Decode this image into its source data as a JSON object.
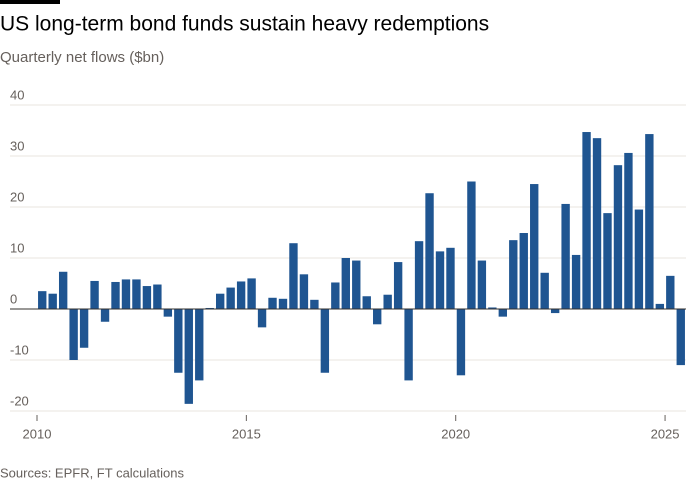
{
  "chart_data": {
    "type": "bar",
    "title": "US long-term bond funds sustain heavy redemptions",
    "subtitle": "Quarterly net flows ($bn)",
    "source": "Sources: EPFR, FT calculations",
    "color": "#1f5591",
    "x": [
      2010,
      2010.25,
      2010.5,
      2010.75,
      2011,
      2011.25,
      2011.5,
      2011.75,
      2012,
      2012.25,
      2012.5,
      2012.75,
      2013,
      2013.25,
      2013.5,
      2013.75,
      2014,
      2014.25,
      2014.5,
      2014.75,
      2015,
      2015.25,
      2015.5,
      2015.75,
      2016,
      2016.25,
      2016.5,
      2016.75,
      2017,
      2017.25,
      2017.5,
      2017.75,
      2018,
      2018.25,
      2018.5,
      2018.75,
      2019,
      2019.25,
      2019.5,
      2019.75,
      2020,
      2020.25,
      2020.5,
      2020.75,
      2021,
      2021.25,
      2021.5,
      2021.75,
      2022,
      2022.25,
      2022.5,
      2022.75,
      2023,
      2023.25,
      2023.5,
      2023.75,
      2024,
      2024.25,
      2024.5,
      2024.75,
      2025,
      2025.25
    ],
    "values": [
      3.5,
      3,
      7.3,
      -10,
      -7.6,
      5.5,
      -2.5,
      5.3,
      5.8,
      5.8,
      4.5,
      4.8,
      -1.5,
      -12.5,
      -18.6,
      -14,
      0.2,
      3,
      4.2,
      5.4,
      6,
      -3.6,
      2.2,
      2,
      12.9,
      6.8,
      1.8,
      -12.5,
      5.2,
      10,
      9.5,
      2.5,
      -3,
      2.8,
      9.2,
      -14,
      13.3,
      22.7,
      11.3,
      12,
      -13,
      25,
      9.5,
      0.3,
      -1.5,
      13.5,
      14.9,
      24.5,
      7.1,
      -0.8,
      20.6,
      10.6,
      34.7,
      33.5,
      18.8,
      28.2,
      30.6,
      19.5,
      34.3,
      1,
      6.5,
      -11
    ],
    "xlim": [
      2010,
      2025.5
    ],
    "xticks": [
      2010,
      2015,
      2020,
      2025
    ],
    "ylim": [
      -20,
      40
    ],
    "yticks": [
      -20,
      -10,
      0,
      10,
      20,
      30,
      40
    ],
    "grid": true
  }
}
